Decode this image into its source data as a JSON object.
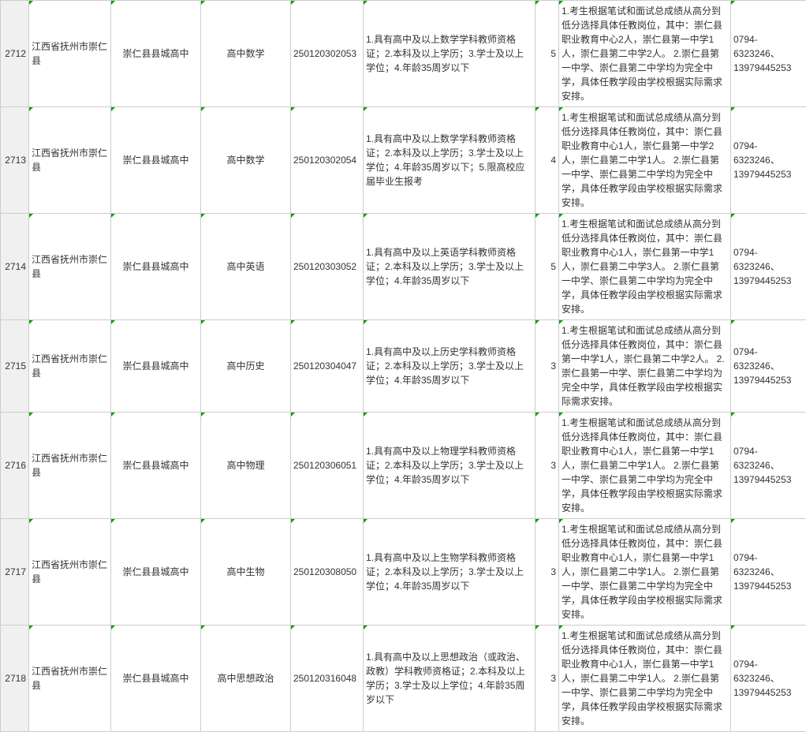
{
  "rows": [
    {
      "idx": "2712",
      "location": "江西省抚州市崇仁县",
      "school": "崇仁县县城高中",
      "subject": "高中数学",
      "code": "250120302053",
      "requirement": "1.具有高中及以上数学学科教师资格证；2.本科及以上学历；3.学士及以上学位；4.年龄35周岁以下",
      "num": "5",
      "note": "1.考生根据笔试和面试总成绩从高分到低分选择具体任教岗位，其中：崇仁县职业教育中心2人，崇仁县第一中学1人，崇仁县第二中学2人。\n2.崇仁县第一中学、崇仁县第二中学均为完全中学，具体任教学段由学校根据实际需求安排。",
      "phone": "0794-6323246、13979445253"
    },
    {
      "idx": "2713",
      "location": "江西省抚州市崇仁县",
      "school": "崇仁县县城高中",
      "subject": "高中数学",
      "code": "250120302054",
      "requirement": "1.具有高中及以上数学学科教师资格证；2.本科及以上学历；3.学士及以上学位；4.年龄35周岁以下；5.限高校应届毕业生报考",
      "num": "4",
      "note": "1.考生根据笔试和面试总成绩从高分到低分选择具体任教岗位，其中：崇仁县职业教育中心1人，崇仁县第一中学2人，崇仁县第二中学1人。\n2.崇仁县第一中学、崇仁县第二中学均为完全中学，具体任教学段由学校根据实际需求安排。",
      "phone": "0794-6323246、13979445253"
    },
    {
      "idx": "2714",
      "location": "江西省抚州市崇仁县",
      "school": "崇仁县县城高中",
      "subject": "高中英语",
      "code": "250120303052",
      "requirement": "1.具有高中及以上英语学科教师资格证；2.本科及以上学历；3.学士及以上学位；4.年龄35周岁以下",
      "num": "5",
      "note": "1.考生根据笔试和面试总成绩从高分到低分选择具体任教岗位，其中：崇仁县职业教育中心1人，崇仁县第一中学1人，崇仁县第二中学3人。\n2.崇仁县第一中学、崇仁县第二中学均为完全中学，具体任教学段由学校根据实际需求安排。",
      "phone": "0794-6323246、13979445253"
    },
    {
      "idx": "2715",
      "location": "江西省抚州市崇仁县",
      "school": "崇仁县县城高中",
      "subject": "高中历史",
      "code": "250120304047",
      "requirement": "1.具有高中及以上历史学科教师资格证；2.本科及以上学历；3.学士及以上学位；4.年龄35周岁以下",
      "num": "3",
      "note": "1.考生根据笔试和面试总成绩从高分到低分选择具体任教岗位，其中：崇仁县第一中学1人，崇仁县第二中学2人。\n2.崇仁县第一中学、崇仁县第二中学均为完全中学，具体任教学段由学校根据实际需求安排。",
      "phone": "0794-6323246、13979445253"
    },
    {
      "idx": "2716",
      "location": "江西省抚州市崇仁县",
      "school": "崇仁县县城高中",
      "subject": "高中物理",
      "code": "250120306051",
      "requirement": "1.具有高中及以上物理学科教师资格证；2.本科及以上学历；3.学士及以上学位；4.年龄35周岁以下",
      "num": "3",
      "note": "1.考生根据笔试和面试总成绩从高分到低分选择具体任教岗位，其中：崇仁县职业教育中心1人，崇仁县第一中学1人，崇仁县第二中学1人。\n2.崇仁县第一中学、崇仁县第二中学均为完全中学，具体任教学段由学校根据实际需求安排。",
      "phone": "0794-6323246、13979445253"
    },
    {
      "idx": "2717",
      "location": "江西省抚州市崇仁县",
      "school": "崇仁县县城高中",
      "subject": "高中生物",
      "code": "250120308050",
      "requirement": "1.具有高中及以上生物学科教师资格证；2.本科及以上学历；3.学士及以上学位；4.年龄35周岁以下",
      "num": "3",
      "note": "1.考生根据笔试和面试总成绩从高分到低分选择具体任教岗位，其中：崇仁县职业教育中心1人，崇仁县第一中学1人，崇仁县第二中学1人。\n2.崇仁县第一中学、崇仁县第二中学均为完全中学，具体任教学段由学校根据实际需求安排。",
      "phone": "0794-6323246、13979445253"
    },
    {
      "idx": "2718",
      "location": "江西省抚州市崇仁县",
      "school": "崇仁县县城高中",
      "subject": "高中思想政治",
      "code": "250120316048",
      "requirement": "1.具有高中及以上思想政治（或政治、政教）学科教师资格证；2.本科及以上学历；3.学士及以上学位；4.年龄35周岁以下",
      "num": "3",
      "note": "1.考生根据笔试和面试总成绩从高分到低分选择具体任教岗位，其中：崇仁县职业教育中心1人，崇仁县第一中学1人，崇仁县第二中学1人。\n2.崇仁县第一中学、崇仁县第二中学均为完全中学，具体任教学段由学校根据实际需求安排。",
      "phone": "0794-6323246、13979445253"
    }
  ]
}
